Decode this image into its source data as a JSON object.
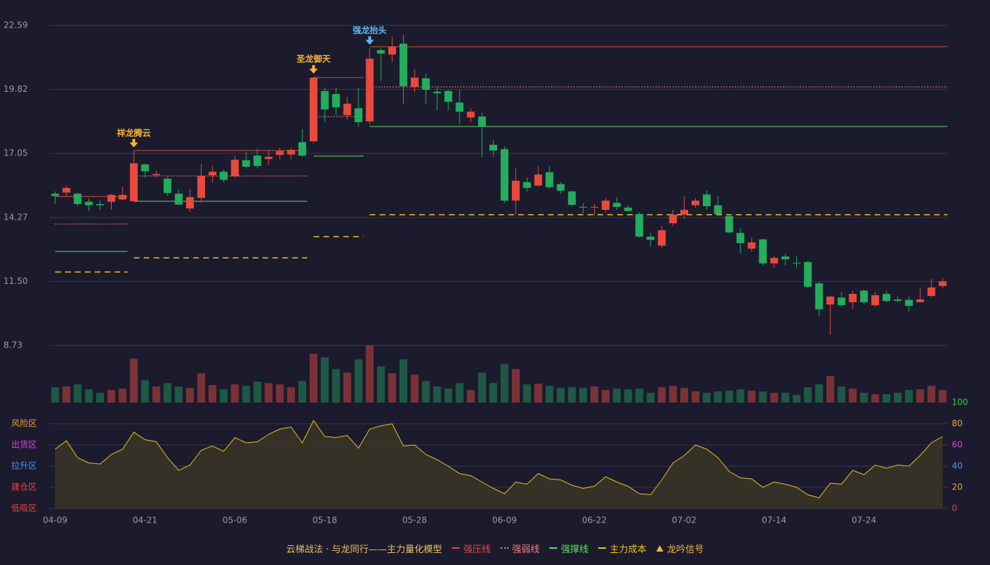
{
  "chart_data": {
    "type": "candlestick",
    "categories": [
      "04-09",
      null,
      null,
      null,
      null,
      null,
      null,
      null,
      "04-21",
      null,
      null,
      null,
      null,
      null,
      null,
      null,
      "05-06",
      null,
      null,
      null,
      null,
      null,
      null,
      null,
      "05-18",
      null,
      null,
      null,
      null,
      null,
      null,
      null,
      "05-28",
      null,
      null,
      null,
      null,
      null,
      null,
      null,
      "06-09",
      null,
      null,
      null,
      null,
      null,
      null,
      null,
      "06-22",
      null,
      null,
      null,
      null,
      null,
      null,
      null,
      "07-02",
      null,
      null,
      null,
      null,
      null,
      null,
      null,
      "07-14",
      null,
      null,
      null,
      null,
      null,
      null,
      null,
      "07-24",
      null,
      null,
      null,
      null,
      null,
      null,
      null
    ],
    "ohlc": [
      [
        15.3,
        15.4,
        14.85,
        15.2
      ],
      [
        15.35,
        15.65,
        15.2,
        15.55
      ],
      [
        15.3,
        15.35,
        14.75,
        14.85
      ],
      [
        14.95,
        15.1,
        14.55,
        14.8
      ],
      [
        14.85,
        15.0,
        14.6,
        14.8
      ],
      [
        14.95,
        15.3,
        14.6,
        15.25
      ],
      [
        15.05,
        15.6,
        15.0,
        15.25
      ],
      [
        14.98,
        17.15,
        14.95,
        16.62
      ],
      [
        16.57,
        16.6,
        16.0,
        16.27
      ],
      [
        16.1,
        16.3,
        16.0,
        16.15
      ],
      [
        15.95,
        16.05,
        15.2,
        15.33
      ],
      [
        15.3,
        15.5,
        14.8,
        14.83
      ],
      [
        14.66,
        15.5,
        14.5,
        15.15
      ],
      [
        15.12,
        16.6,
        14.9,
        16.07
      ],
      [
        16.1,
        16.5,
        15.8,
        16.25
      ],
      [
        16.25,
        16.35,
        15.8,
        15.9
      ],
      [
        16.05,
        16.95,
        16.0,
        16.77
      ],
      [
        16.75,
        17.1,
        16.4,
        16.47
      ],
      [
        16.95,
        17.25,
        16.4,
        16.5
      ],
      [
        16.8,
        17.2,
        16.55,
        16.9
      ],
      [
        16.98,
        17.3,
        16.8,
        17.15
      ],
      [
        17.0,
        17.3,
        16.8,
        17.2
      ],
      [
        17.53,
        18.1,
        16.9,
        16.95
      ],
      [
        17.57,
        20.35,
        17.5,
        20.33
      ],
      [
        19.75,
        19.9,
        18.4,
        18.95
      ],
      [
        19.62,
        19.9,
        18.7,
        19.04
      ],
      [
        18.7,
        19.5,
        18.5,
        19.2
      ],
      [
        19.0,
        19.9,
        18.2,
        18.4
      ],
      [
        18.43,
        21.6,
        18.3,
        21.15
      ],
      [
        21.52,
        21.6,
        20.2,
        21.37
      ],
      [
        21.33,
        22.1,
        21.0,
        21.67
      ],
      [
        21.8,
        22.2,
        19.2,
        19.96
      ],
      [
        19.93,
        20.7,
        19.7,
        20.33
      ],
      [
        20.3,
        20.5,
        19.2,
        19.8
      ],
      [
        19.72,
        19.9,
        18.9,
        19.65
      ],
      [
        19.75,
        19.8,
        18.9,
        19.28
      ],
      [
        19.25,
        19.8,
        18.3,
        18.85
      ],
      [
        18.6,
        19.0,
        18.4,
        18.85
      ],
      [
        18.64,
        18.8,
        16.9,
        18.21
      ],
      [
        17.42,
        17.6,
        16.9,
        17.17
      ],
      [
        17.23,
        17.35,
        14.9,
        15.0
      ],
      [
        15.0,
        16.4,
        14.4,
        15.86
      ],
      [
        15.8,
        16.0,
        15.4,
        15.55
      ],
      [
        15.65,
        16.5,
        15.6,
        16.13
      ],
      [
        16.23,
        16.5,
        15.5,
        15.58
      ],
      [
        15.72,
        15.8,
        15.3,
        15.43
      ],
      [
        15.4,
        15.45,
        14.75,
        14.82
      ],
      [
        14.73,
        14.9,
        14.45,
        14.7
      ],
      [
        14.7,
        14.85,
        14.35,
        14.73
      ],
      [
        14.6,
        15.1,
        14.5,
        15.0
      ],
      [
        14.9,
        15.15,
        14.6,
        14.73
      ],
      [
        14.7,
        14.8,
        14.5,
        14.55
      ],
      [
        14.42,
        14.5,
        13.4,
        13.44
      ],
      [
        13.44,
        13.6,
        13.0,
        13.3
      ],
      [
        13.05,
        13.9,
        12.95,
        13.72
      ],
      [
        14.02,
        14.6,
        13.9,
        14.39
      ],
      [
        14.4,
        15.2,
        14.2,
        14.6
      ],
      [
        14.8,
        15.1,
        14.7,
        15.0
      ],
      [
        15.27,
        15.45,
        14.6,
        14.76
      ],
      [
        14.8,
        15.2,
        14.4,
        14.42
      ],
      [
        14.33,
        14.4,
        13.6,
        13.62
      ],
      [
        13.6,
        13.8,
        12.7,
        13.16
      ],
      [
        12.92,
        13.4,
        12.8,
        13.19
      ],
      [
        13.32,
        13.35,
        12.2,
        12.28
      ],
      [
        12.28,
        12.6,
        12.1,
        12.52
      ],
      [
        12.58,
        12.7,
        12.2,
        12.46
      ],
      [
        12.3,
        12.6,
        12.1,
        12.27
      ],
      [
        12.34,
        12.4,
        11.2,
        11.27
      ],
      [
        11.42,
        11.5,
        10.0,
        10.29
      ],
      [
        10.5,
        10.9,
        9.2,
        10.84
      ],
      [
        10.8,
        11.05,
        10.4,
        10.47
      ],
      [
        10.6,
        11.1,
        10.3,
        10.96
      ],
      [
        11.1,
        11.15,
        10.5,
        10.6
      ],
      [
        10.47,
        11.05,
        10.4,
        10.9
      ],
      [
        10.96,
        11.1,
        10.6,
        10.65
      ],
      [
        10.72,
        10.85,
        10.6,
        10.66
      ],
      [
        10.7,
        10.85,
        10.2,
        10.44
      ],
      [
        10.6,
        11.2,
        10.6,
        10.72
      ],
      [
        10.87,
        11.6,
        10.8,
        11.24
      ],
      [
        11.3,
        11.65,
        11.2,
        11.5
      ]
    ],
    "volume": [
      22,
      23,
      26,
      19,
      14,
      18,
      20,
      63,
      32,
      23,
      28,
      23,
      21,
      42,
      25,
      19,
      26,
      24,
      30,
      28,
      26,
      22,
      31,
      70,
      65,
      48,
      43,
      62,
      82,
      52,
      42,
      62,
      40,
      31,
      23,
      20,
      28,
      18,
      43,
      28,
      55,
      48,
      26,
      27,
      24,
      21,
      22,
      21,
      23,
      18,
      20,
      19,
      20,
      14,
      22,
      24,
      21,
      16,
      14,
      16,
      17,
      19,
      17,
      16,
      14,
      14,
      11,
      22,
      26,
      38,
      23,
      20,
      14,
      12,
      12,
      14,
      18,
      19,
      24,
      18
    ],
    "up_color": "#e8493c",
    "down_color": "#23ad5c",
    "up_volume_color": "#7b3236",
    "down_volume_color": "#1e5945",
    "ylim": [
      8.73,
      22.59
    ],
    "yticks": [
      22.59,
      19.82,
      17.05,
      14.27,
      {
        "value": 11.5,
        "label": "11.50"
      },
      8.73
    ],
    "lines": [
      {
        "name": "强压线",
        "color": "#e04a40",
        "dash": "solid",
        "segments": [
          {
            "from": 0,
            "to": 6,
            "value": 15.18
          },
          {
            "from": 7,
            "to": 22,
            "value": 17.17
          },
          {
            "from": 23,
            "to": 27,
            "value": 20.33
          },
          {
            "from": 28,
            "to": 79,
            "value": 21.67
          }
        ]
      },
      {
        "name": "强弱线",
        "color": "#f08080",
        "dash": "dotted",
        "segments": [
          {
            "from": 0,
            "to": 6,
            "value": 13.99
          },
          {
            "from": 7,
            "to": 22,
            "value": 16.07
          },
          {
            "from": 23,
            "to": 27,
            "value": 18.64
          },
          {
            "from": 28,
            "to": 79,
            "value": 19.93
          }
        ]
      },
      {
        "name": "强撑线",
        "color": "#5ce05c",
        "dash": "solid",
        "segments": [
          {
            "from": 0,
            "to": 6,
            "value": 12.8
          },
          {
            "from": 7,
            "to": 22,
            "value": 14.97
          },
          {
            "from": 23,
            "to": 27,
            "value": 16.93
          },
          {
            "from": 28,
            "to": 79,
            "value": 18.21
          }
        ]
      },
      {
        "name": "主力成本",
        "color": "#f2c21c",
        "dash": "dashed",
        "segments": [
          {
            "from": 0,
            "to": 6,
            "value": 11.91
          },
          {
            "from": 7,
            "to": 22,
            "value": 12.52
          },
          {
            "from": 23,
            "to": 27,
            "value": 13.44
          },
          {
            "from": 28,
            "to": 79,
            "value": 14.39
          }
        ]
      }
    ],
    "signals": [
      {
        "label": "祥龙腾云",
        "index": 7,
        "value": 17.15,
        "color": "#f5b536"
      },
      {
        "label": "圣龙御天",
        "index": 23,
        "value": 20.35,
        "color": "#f5b536"
      },
      {
        "label": "强龙抬头",
        "index": 28,
        "value": 21.6,
        "color": "#5cb8f0"
      }
    ],
    "signal_legend": {
      "name": "龙吟信号",
      "color": "#f5b536"
    },
    "oscillator": {
      "values": [
        56,
        64,
        48,
        43,
        42,
        51,
        56,
        72,
        65,
        63,
        48,
        36,
        41,
        55,
        59,
        54,
        67,
        62,
        63,
        70,
        75,
        77,
        62,
        83,
        68,
        67,
        69,
        57,
        75,
        78,
        80,
        59,
        60,
        51,
        46,
        40,
        33,
        31,
        25,
        19,
        14,
        25,
        23,
        33,
        28,
        27,
        22,
        19,
        21,
        30,
        25,
        21,
        14,
        13,
        27,
        43,
        50,
        60,
        56,
        48,
        35,
        29,
        28,
        20,
        25,
        23,
        20,
        13,
        10,
        24,
        23,
        36,
        32,
        41,
        38,
        41,
        40,
        50,
        62,
        68
      ],
      "color": "#e8c020",
      "ylim": [
        0,
        100
      ],
      "ticks": [
        0,
        20,
        40,
        60,
        80,
        100
      ],
      "tick_colors": [
        "#f04040",
        "#f0a030",
        "#4a90ff",
        "#e040e0",
        "#f0a030",
        "#30d040"
      ],
      "zones": [
        {
          "value": 80,
          "label": "风险区",
          "color": "#f0a030"
        },
        {
          "value": 60,
          "label": "出货区",
          "color": "#e040e0"
        },
        {
          "value": 40,
          "label": "拉升区",
          "color": "#4a90ff"
        },
        {
          "value": 20,
          "label": "建仓区",
          "color": "#f04040"
        },
        {
          "value": 0,
          "label": "低吸区",
          "color": "#f04040"
        }
      ]
    },
    "legend_title": "云梯战法 · 与龙同行——主力量化模型",
    "legend_title_color": "#e8c060"
  }
}
